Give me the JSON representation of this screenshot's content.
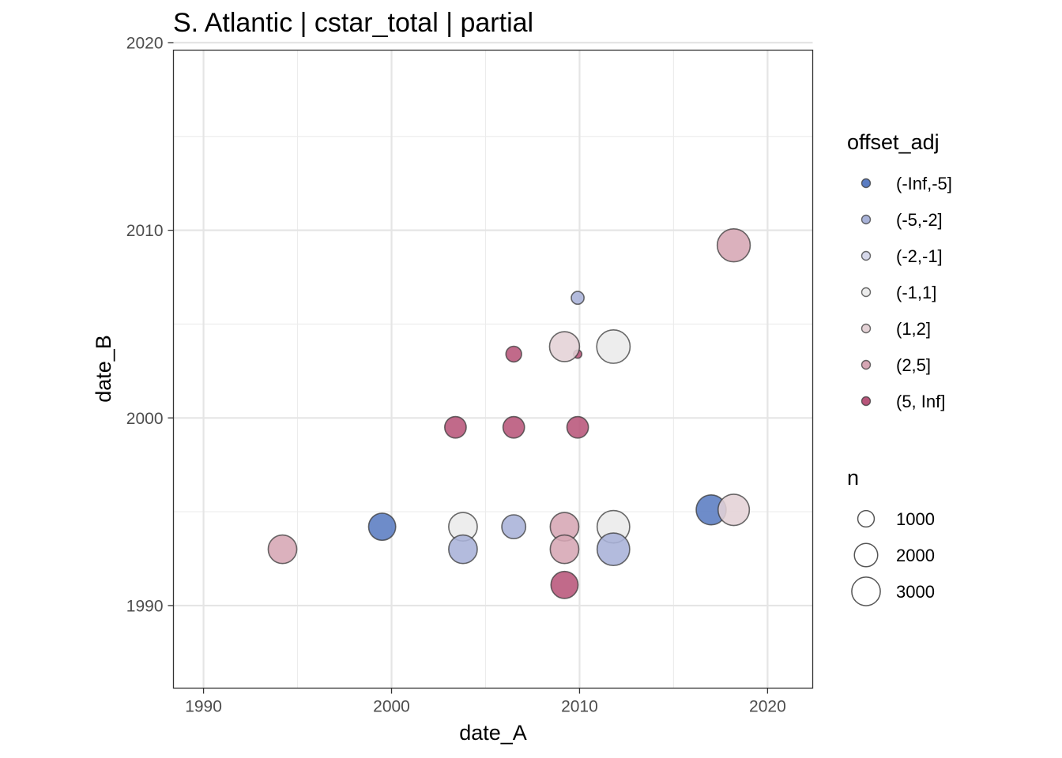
{
  "chart_data": {
    "type": "scatter",
    "title": "S. Atlantic | cstar_total | partial",
    "xlabel": "date_A",
    "ylabel": "date_B",
    "xlim": [
      1988.4,
      2022.4
    ],
    "ylim": [
      1985.6,
      2019.6
    ],
    "x_ticks": [
      1990,
      2000,
      2010,
      2020
    ],
    "y_ticks": [
      1990,
      2000,
      2010,
      2020
    ],
    "x_tick_labels": [
      "1990",
      "2000",
      "2010",
      "2020"
    ],
    "y_tick_labels": [
      "1990",
      "2000",
      "2010",
      "2020"
    ],
    "grid": true,
    "legend_position": "right",
    "color_legend": {
      "title": "offset_adj",
      "items": [
        {
          "label": "(-Inf,-5]",
          "color": "#5a7cc2"
        },
        {
          "label": "(-5,-2]",
          "color": "#a8b2d8"
        },
        {
          "label": "(-2,-1]",
          "color": "#d6d8ea"
        },
        {
          "label": "(-1,1]",
          "color": "#ebebeb"
        },
        {
          "label": "(1,2]",
          "color": "#e4d2d6"
        },
        {
          "label": "(2,5]",
          "color": "#d6a6b4"
        },
        {
          "label": "(5, Inf]",
          "color": "#b8557a"
        }
      ]
    },
    "size_legend": {
      "title": "n",
      "items": [
        {
          "label": "1000",
          "value": 1000
        },
        {
          "label": "2000",
          "value": 2000
        },
        {
          "label": "3000",
          "value": 3000
        }
      ]
    },
    "points": [
      {
        "x": 1994.2,
        "y": 1993.0,
        "n": 3000,
        "group": "(2,5]"
      },
      {
        "x": 1999.5,
        "y": 1994.2,
        "n": 2700,
        "group": "(-Inf,-5]"
      },
      {
        "x": 2003.8,
        "y": 1994.2,
        "n": 3000,
        "group": "(-1,1]"
      },
      {
        "x": 2003.8,
        "y": 1993.0,
        "n": 3000,
        "group": "(-5,-2]"
      },
      {
        "x": 2006.5,
        "y": 1994.2,
        "n": 2100,
        "group": "(-5,-2]"
      },
      {
        "x": 2009.2,
        "y": 1994.2,
        "n": 3000,
        "group": "(2,5]"
      },
      {
        "x": 2009.2,
        "y": 1993.0,
        "n": 3000,
        "group": "(2,5]"
      },
      {
        "x": 2009.2,
        "y": 1991.1,
        "n": 2700,
        "group": "(5, Inf]"
      },
      {
        "x": 2011.8,
        "y": 1994.2,
        "n": 3900,
        "group": "(-1,1]"
      },
      {
        "x": 2011.8,
        "y": 1993.0,
        "n": 3900,
        "group": "(-5,-2]"
      },
      {
        "x": 2017.0,
        "y": 1995.1,
        "n": 3300,
        "group": "(-Inf,-5]"
      },
      {
        "x": 2018.2,
        "y": 1995.1,
        "n": 3600,
        "group": "(1,2]"
      },
      {
        "x": 2003.4,
        "y": 1999.5,
        "n": 1700,
        "group": "(5, Inf]"
      },
      {
        "x": 2006.5,
        "y": 1999.5,
        "n": 1700,
        "group": "(5, Inf]"
      },
      {
        "x": 2009.9,
        "y": 1999.5,
        "n": 1700,
        "group": "(5, Inf]"
      },
      {
        "x": 2006.5,
        "y": 2003.4,
        "n": 900,
        "group": "(5, Inf]"
      },
      {
        "x": 2009.9,
        "y": 2003.4,
        "n": 250,
        "group": "(5, Inf]"
      },
      {
        "x": 2009.2,
        "y": 2003.8,
        "n": 3300,
        "group": "(1,2]"
      },
      {
        "x": 2011.8,
        "y": 2003.8,
        "n": 4100,
        "group": "(-1,1]"
      },
      {
        "x": 2009.9,
        "y": 2006.4,
        "n": 600,
        "group": "(-5,-2]"
      },
      {
        "x": 2018.2,
        "y": 2009.2,
        "n": 4000,
        "group": "(2,5]"
      }
    ]
  }
}
